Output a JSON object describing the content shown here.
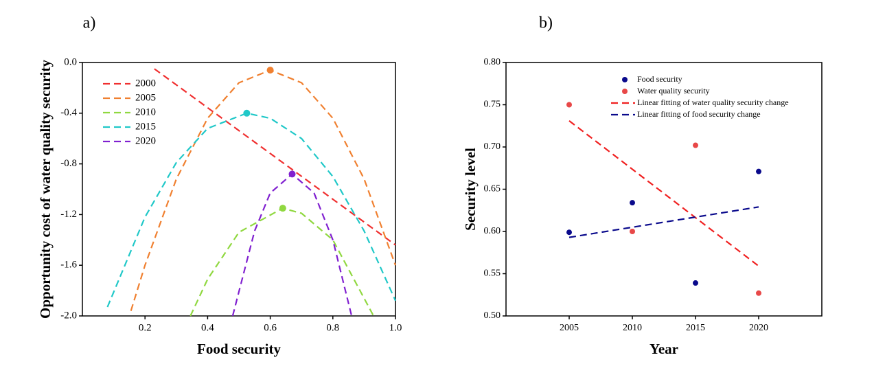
{
  "chart_data": [
    {
      "type": "line",
      "label": "a)",
      "xlabel": "Food security",
      "ylabel": "Opportunity cost of water quality security",
      "xlim": [
        0,
        1.0
      ],
      "ylim": [
        -2.0,
        0.0
      ],
      "xticks": [
        0.2,
        0.4,
        0.6,
        0.8,
        {
          "value": 1.0,
          "label": "1.0"
        }
      ],
      "yticks": [
        {
          "value": 0.0,
          "label": "0.0"
        },
        -0.4,
        -0.8,
        -1.2,
        -1.6,
        {
          "value": -2.0,
          "label": "-2.0"
        }
      ],
      "legend": "upper left",
      "series": [
        {
          "name": "2000",
          "color": "#f03030",
          "x": [
            0.23,
            1.0
          ],
          "values": [
            -0.05,
            -1.44
          ]
        },
        {
          "name": "2005",
          "color": "#f08030",
          "x": [
            0.155,
            0.2,
            0.3,
            0.4,
            0.5,
            0.6,
            0.7,
            0.8,
            0.9,
            1.0
          ],
          "values": [
            -1.96,
            -1.6,
            -0.92,
            -0.44,
            -0.16,
            -0.06,
            -0.16,
            -0.44,
            -0.92,
            -1.6
          ],
          "peak_x": 0.6,
          "peak_y": -0.06
        },
        {
          "name": "2010",
          "color": "#90d840",
          "x": [
            0.345,
            0.4,
            0.5,
            0.64,
            0.7,
            0.8,
            0.93
          ],
          "values": [
            -2.0,
            -1.71,
            -1.34,
            -1.15,
            -1.19,
            -1.4,
            -2.0
          ],
          "peak_x": 0.64,
          "peak_y": -1.15
        },
        {
          "name": "2015",
          "color": "#20c8c8",
          "x": [
            0.08,
            0.2,
            0.3,
            0.4,
            0.525,
            0.6,
            0.7,
            0.8,
            0.9,
            1.0
          ],
          "values": [
            -1.93,
            -1.22,
            -0.79,
            -0.52,
            -0.4,
            -0.44,
            -0.6,
            -0.9,
            -1.33,
            -1.88
          ],
          "peak_x": 0.525,
          "peak_y": -0.4
        },
        {
          "name": "2020",
          "color": "#8020d0",
          "x": [
            0.48,
            0.55,
            0.6,
            0.67,
            0.74,
            0.8,
            0.86
          ],
          "values": [
            -2.0,
            -1.33,
            -1.03,
            -0.88,
            -1.03,
            -1.4,
            -2.0
          ],
          "peak_x": 0.67,
          "peak_y": -0.88
        }
      ]
    },
    {
      "type": "scatter",
      "label": "b)",
      "xlabel": "Year",
      "ylabel": "Security level",
      "xlim": [
        2000,
        2025
      ],
      "ylim": [
        0.5,
        0.8
      ],
      "xticks": [
        2005,
        2010,
        2015,
        2020
      ],
      "yticks": [
        {
          "value": 0.5,
          "label": "0.50"
        },
        0.55,
        {
          "value": 0.6,
          "label": "0.60"
        },
        0.65,
        {
          "value": 0.7,
          "label": "0.70"
        },
        0.75,
        {
          "value": 0.8,
          "label": "0.80"
        }
      ],
      "legend": "upper center",
      "x": [
        2005,
        2010,
        2015,
        2020
      ],
      "series": [
        {
          "name": "Food security",
          "type": "scatter",
          "color": "#0a0a8c",
          "values": [
            0.599,
            0.634,
            0.539,
            0.671
          ]
        },
        {
          "name": "Water quality security",
          "type": "scatter",
          "color": "#e84848",
          "values": [
            0.75,
            0.6,
            0.702,
            0.527
          ]
        },
        {
          "name": "Linear fitting of water quality security change",
          "type": "line",
          "color": "#f02020",
          "x": [
            2005,
            2020
          ],
          "values": [
            0.731,
            0.559
          ]
        },
        {
          "name": "Linear fitting of food security change",
          "type": "line",
          "color": "#0a0a8c",
          "x": [
            2005,
            2020
          ],
          "values": [
            0.593,
            0.629
          ]
        }
      ]
    }
  ]
}
